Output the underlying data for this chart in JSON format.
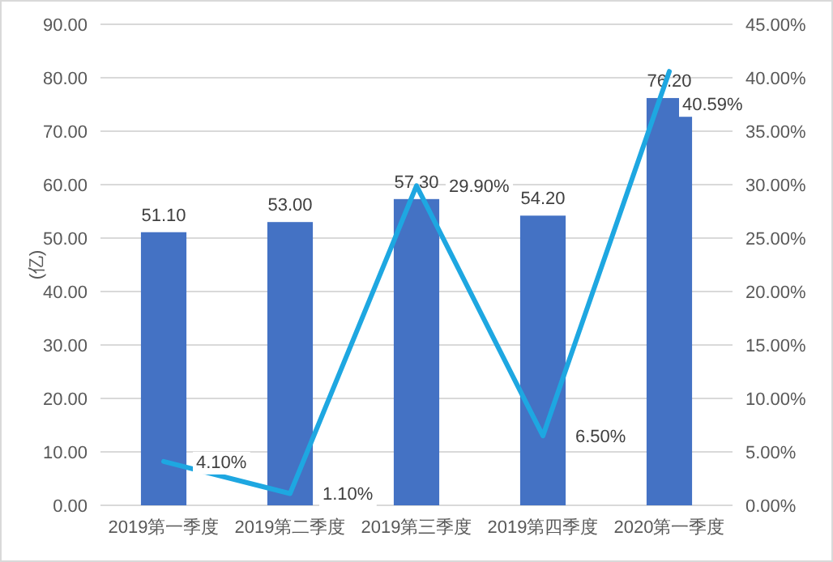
{
  "chart_data": {
    "type": "bar",
    "ylabel": "(亿)",
    "categories": [
      "2019第一季度",
      "2019第二季度",
      "2019第三季度",
      "2019第四季度",
      "2020第一季度"
    ],
    "series": [
      {
        "color": "#4472c4",
        "values": [
          51.1,
          53.0,
          57.3,
          54.2,
          76.2
        ],
        "value_labels": [
          "51.10",
          "53.00",
          "57.30",
          "54.20",
          "76.20"
        ]
      },
      {
        "type": "line",
        "axis": "y2",
        "color": "#1ea7e1",
        "marker": "none",
        "line_style": "solid",
        "values": [
          4.1,
          1.1,
          29.9,
          6.5,
          40.59
        ],
        "value_labels": [
          "4.10%",
          "1.10%",
          "29.90%",
          "6.50%",
          "40.59%"
        ]
      }
    ],
    "ylim": [
      0,
      90
    ],
    "yticks": [
      {
        "value": 0,
        "label": "0.00"
      },
      {
        "value": 10,
        "label": "10.00"
      },
      {
        "value": 20,
        "label": "20.00"
      },
      {
        "value": 30,
        "label": "30.00"
      },
      {
        "value": 40,
        "label": "40.00"
      },
      {
        "value": 50,
        "label": "50.00"
      },
      {
        "value": 60,
        "label": "60.00"
      },
      {
        "value": 70,
        "label": "70.00"
      },
      {
        "value": 80,
        "label": "80.00"
      },
      {
        "value": 90,
        "label": "90.00"
      }
    ],
    "y2lim": [
      0,
      45
    ],
    "y2ticks": [
      {
        "value": 0,
        "label": "0.00%"
      },
      {
        "value": 5,
        "label": "5.00%"
      },
      {
        "value": 10,
        "label": "10.00%"
      },
      {
        "value": 15,
        "label": "15.00%"
      },
      {
        "value": 20,
        "label": "20.00%"
      },
      {
        "value": 25,
        "label": "25.00%"
      },
      {
        "value": 30,
        "label": "30.00%"
      },
      {
        "value": 35,
        "label": "35.00%"
      },
      {
        "value": 40,
        "label": "40.00%"
      },
      {
        "value": 45,
        "label": "45.00%"
      }
    ],
    "grid": "y"
  }
}
